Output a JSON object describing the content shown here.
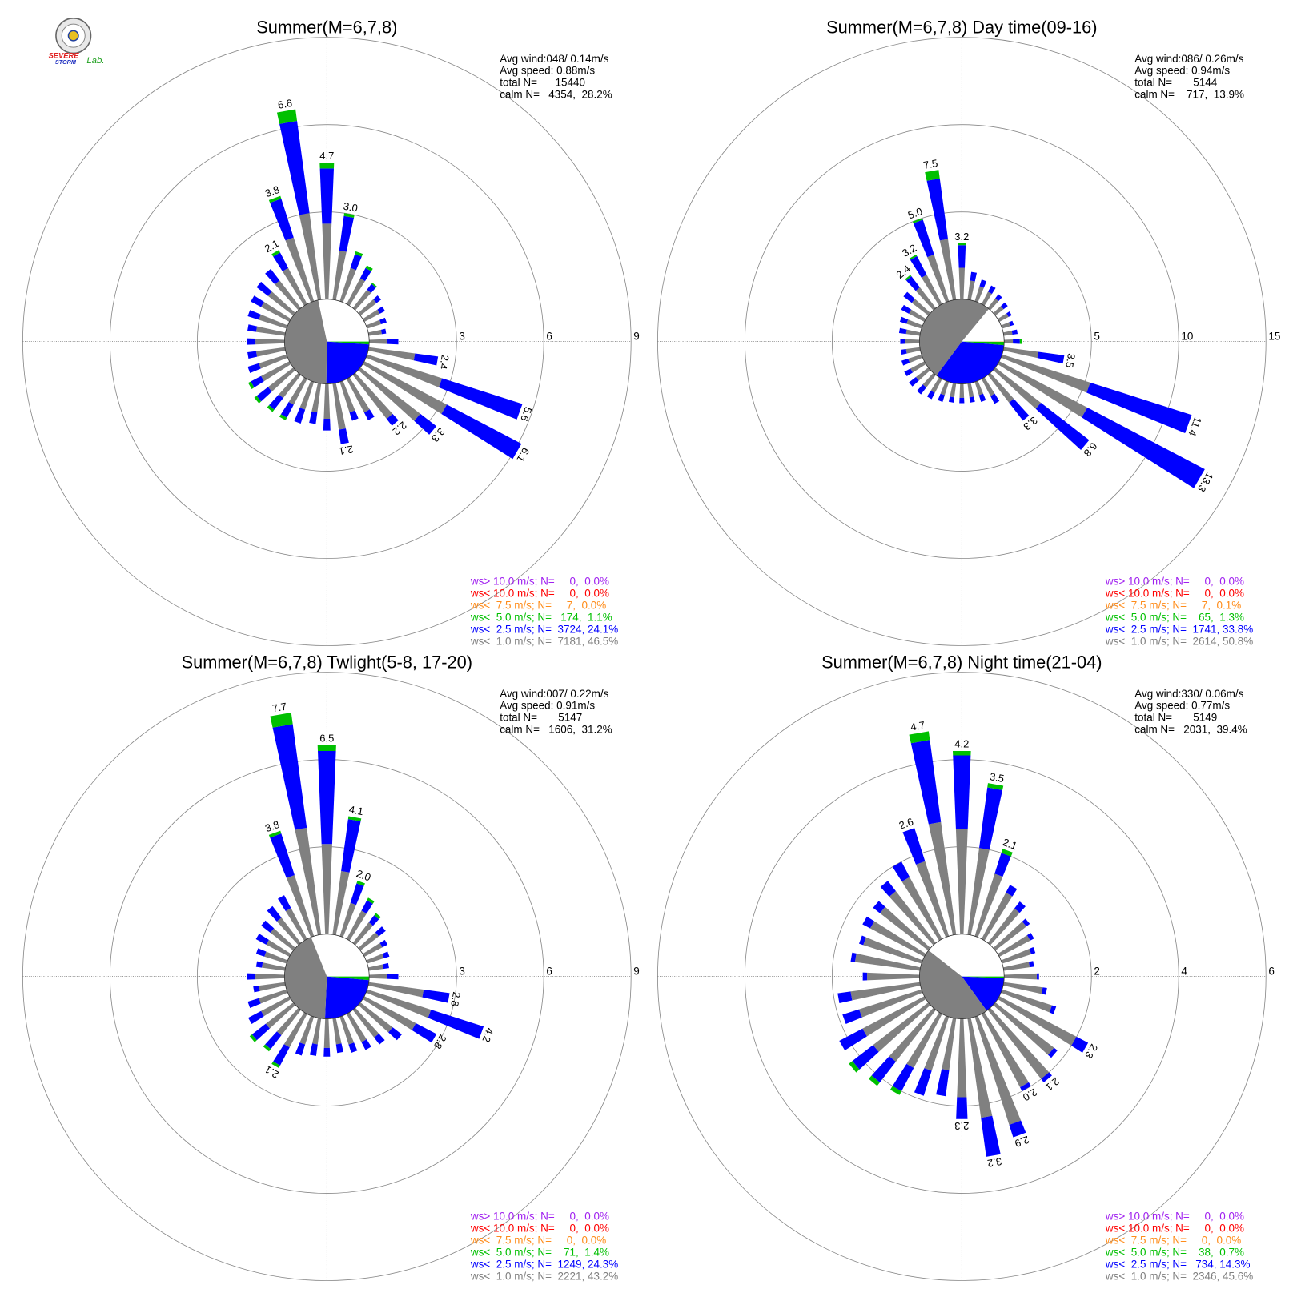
{
  "logo": {
    "line1": "SEVERE",
    "line2": "STORM",
    "line3": "Lab."
  },
  "chart_data": [
    {
      "type": "windrose",
      "title": "Summer(M=6,7,8)",
      "stats": [
        "Avg wind:048/ 0.14m/s",
        "Avg speed: 0.88m/s",
        "total N=      15440",
        "calm N=   4354,  28.2%"
      ],
      "rlim": [
        0,
        9
      ],
      "rticks": [
        3,
        6,
        9
      ],
      "directions": [
        0,
        10,
        20,
        30,
        40,
        50,
        60,
        70,
        80,
        90,
        100,
        110,
        120,
        130,
        140,
        150,
        160,
        170,
        180,
        190,
        200,
        210,
        220,
        230,
        240,
        250,
        260,
        270,
        280,
        290,
        300,
        310,
        320,
        330,
        340,
        350
      ],
      "series": [
        {
          "color": "#808080",
          "values": [
            2.6,
            1.7,
            1.2,
            1.0,
            0.8,
            0.7,
            0.6,
            0.5,
            0.45,
            0.6,
            1.6,
            2.7,
            3.2,
            2.6,
            1.9,
            1.3,
            1.1,
            1.6,
            1.2,
            1.0,
            1.0,
            1.0,
            1.0,
            1.1,
            1.1,
            1.0,
            1.0,
            1.0,
            1.0,
            1.0,
            1.1,
            1.1,
            1.2,
            1.4,
            2.3,
            3.0
          ]
        },
        {
          "color": "#0000ff",
          "values": [
            1.9,
            1.2,
            0.5,
            0.4,
            0.25,
            0.2,
            0.2,
            0.2,
            0.15,
            0.4,
            0.8,
            2.9,
            2.9,
            0.7,
            0.3,
            0.3,
            0.3,
            0.5,
            0.4,
            0.4,
            0.5,
            0.5,
            0.5,
            0.5,
            0.4,
            0.4,
            0.3,
            0.3,
            0.3,
            0.4,
            0.4,
            0.5,
            0.5,
            0.6,
            1.4,
            3.2
          ]
        },
        {
          "color": "#00c000",
          "values": [
            0.2,
            0.1,
            0.1,
            0.1,
            0.05,
            0,
            0,
            0,
            0,
            0,
            0,
            0,
            0,
            0,
            0,
            0,
            0,
            0,
            0,
            0,
            0,
            0.1,
            0.1,
            0.1,
            0.1,
            0,
            0,
            0,
            0,
            0,
            0,
            0,
            0,
            0.1,
            0.1,
            0.4
          ]
        }
      ],
      "total_labels": [
        "4.7",
        "3.0",
        null,
        null,
        null,
        null,
        null,
        null,
        null,
        null,
        "2.4",
        "5.6",
        "6.1",
        "3.3",
        "2.2",
        null,
        null,
        "2.1",
        null,
        null,
        null,
        null,
        null,
        null,
        null,
        null,
        null,
        null,
        null,
        null,
        null,
        null,
        null,
        "2.1",
        "3.8",
        "6.6"
      ],
      "legend": [
        {
          "text": "ws> 10.0 m/s; N=     0,  0.0%",
          "color": "#a020f0",
          "percent": 0
        },
        {
          "text": "ws< 10.0 m/s; N=     0,  0.0%",
          "color": "#ff0000",
          "percent": 0
        },
        {
          "text": "ws<  7.5 m/s; N=     7,  0.0%",
          "color": "#ff8c1a",
          "percent": 0
        },
        {
          "text": "ws<  5.0 m/s; N=   174,  1.1%",
          "color": "#00c000",
          "percent": 1.1
        },
        {
          "text": "ws<  2.5 m/s; N=  3724, 24.1%",
          "color": "#0000ff",
          "percent": 24.1
        },
        {
          "text": "ws<  1.0 m/s; N=  7181, 46.5%",
          "color": "#808080",
          "percent": 46.5
        }
      ]
    },
    {
      "type": "windrose",
      "title": "Summer(M=6,7,8) Day time(09-16)",
      "stats": [
        "Avg wind:086/ 0.26m/s",
        "Avg speed: 0.94m/s",
        "total N=       5144",
        "calm N=    717,  13.9%"
      ],
      "rlim": [
        0,
        15
      ],
      "rticks": [
        5,
        10,
        15
      ],
      "directions": [
        0,
        10,
        20,
        30,
        40,
        50,
        60,
        70,
        80,
        90,
        100,
        110,
        120,
        130,
        140,
        150,
        160,
        170,
        180,
        190,
        200,
        210,
        220,
        230,
        240,
        250,
        260,
        270,
        280,
        290,
        300,
        310,
        320,
        330,
        340,
        350
      ],
      "series": [
        {
          "color": "#808080",
          "values": [
            1.8,
            1.1,
            0.9,
            0.8,
            0.7,
            0.6,
            0.6,
            0.5,
            0.5,
            0.5,
            2.0,
            5.3,
            5.7,
            3.3,
            2.0,
            1.1,
            0.8,
            0.8,
            0.8,
            0.8,
            0.8,
            0.9,
            0.9,
            0.9,
            0.9,
            0.8,
            0.8,
            0.8,
            0.8,
            0.9,
            1.0,
            1.2,
            1.5,
            1.9,
            2.8,
            3.5
          ]
        },
        {
          "color": "#0000ff",
          "values": [
            1.3,
            0.5,
            0.4,
            0.4,
            0.3,
            0.3,
            0.2,
            0.2,
            0.3,
            0.4,
            1.5,
            6.1,
            7.6,
            3.5,
            1.3,
            0.5,
            0.4,
            0.3,
            0.3,
            0.3,
            0.4,
            0.4,
            0.5,
            0.5,
            0.4,
            0.4,
            0.3,
            0.3,
            0.4,
            0.4,
            0.5,
            0.6,
            0.8,
            1.2,
            2.1,
            3.5
          ]
        },
        {
          "color": "#00c000",
          "values": [
            0.1,
            0,
            0,
            0,
            0,
            0,
            0,
            0,
            0,
            0.1,
            0,
            0,
            0,
            0,
            0,
            0,
            0,
            0,
            0,
            0,
            0,
            0,
            0,
            0,
            0,
            0,
            0,
            0,
            0,
            0,
            0,
            0,
            0.1,
            0.1,
            0.1,
            0.5
          ]
        }
      ],
      "total_labels": [
        "3.2",
        null,
        null,
        null,
        null,
        null,
        null,
        null,
        null,
        null,
        "3.5",
        "11.4",
        "13.3",
        "6.8",
        "3.3",
        null,
        null,
        null,
        null,
        null,
        null,
        null,
        null,
        null,
        null,
        null,
        null,
        null,
        null,
        null,
        null,
        null,
        "2.4",
        "3.2",
        "5.0",
        "7.5"
      ],
      "legend": [
        {
          "text": "ws> 10.0 m/s; N=     0,  0.0%",
          "color": "#a020f0",
          "percent": 0
        },
        {
          "text": "ws< 10.0 m/s; N=     0,  0.0%",
          "color": "#ff0000",
          "percent": 0
        },
        {
          "text": "ws<  7.5 m/s; N=     7,  0.1%",
          "color": "#ff8c1a",
          "percent": 0.1
        },
        {
          "text": "ws<  5.0 m/s; N=    65,  1.3%",
          "color": "#00c000",
          "percent": 1.3
        },
        {
          "text": "ws<  2.5 m/s; N=  1741, 33.8%",
          "color": "#0000ff",
          "percent": 33.8
        },
        {
          "text": "ws<  1.0 m/s; N=  2614, 50.8%",
          "color": "#808080",
          "percent": 50.8
        }
      ]
    },
    {
      "type": "windrose",
      "title": "Summer(M=6,7,8) Twlight(5-8, 17-20)",
      "stats": [
        "Avg wind:007/ 0.22m/s",
        "Avg speed: 0.91m/s",
        "total N=       5147",
        "calm N=   1606,  31.2%"
      ],
      "rlim": [
        0,
        9
      ],
      "rticks": [
        3,
        6,
        9
      ],
      "directions": [
        0,
        10,
        20,
        30,
        40,
        50,
        60,
        70,
        80,
        90,
        100,
        110,
        120,
        130,
        140,
        150,
        160,
        170,
        180,
        190,
        200,
        210,
        220,
        230,
        240,
        250,
        260,
        270,
        280,
        290,
        300,
        310,
        320,
        330,
        340,
        350
      ],
      "series": [
        {
          "color": "#808080",
          "values": [
            3.1,
            2.2,
            1.2,
            1.1,
            0.9,
            0.8,
            0.7,
            0.6,
            0.5,
            0.6,
            1.9,
            2.3,
            2.0,
            1.4,
            1.2,
            1.1,
            1.0,
            0.9,
            1.0,
            0.9,
            1.0,
            1.3,
            1.1,
            1.2,
            1.1,
            1.0,
            0.9,
            1.0,
            0.8,
            0.8,
            0.9,
            1.0,
            1.1,
            1.2,
            2.2,
            3.7
          ]
        },
        {
          "color": "#0000ff",
          "values": [
            3.2,
            1.8,
            0.7,
            0.4,
            0.3,
            0.3,
            0.2,
            0.2,
            0.2,
            0.4,
            0.9,
            1.9,
            0.8,
            0.4,
            0.3,
            0.3,
            0.3,
            0.3,
            0.3,
            0.4,
            0.4,
            0.7,
            0.6,
            0.6,
            0.5,
            0.4,
            0.2,
            0.3,
            0.2,
            0.3,
            0.4,
            0.4,
            0.5,
            0.5,
            1.5,
            3.6
          ]
        },
        {
          "color": "#00c000",
          "values": [
            0.2,
            0.1,
            0.1,
            0.1,
            0.1,
            0,
            0,
            0,
            0,
            0,
            0,
            0,
            0,
            0,
            0,
            0,
            0,
            0,
            0,
            0,
            0,
            0.1,
            0.1,
            0.1,
            0,
            0,
            0,
            0,
            0,
            0,
            0,
            0,
            0,
            0,
            0.1,
            0.4
          ]
        }
      ],
      "total_labels": [
        "6.5",
        "4.1",
        "2.0",
        null,
        null,
        null,
        null,
        null,
        null,
        null,
        "2.8",
        "4.2",
        "2.8",
        null,
        null,
        null,
        null,
        null,
        null,
        null,
        null,
        "2.1",
        null,
        null,
        null,
        null,
        null,
        null,
        null,
        null,
        null,
        null,
        null,
        null,
        "3.8",
        "7.7"
      ],
      "legend": [
        {
          "text": "ws> 10.0 m/s; N=     0,  0.0%",
          "color": "#a020f0",
          "percent": 0
        },
        {
          "text": "ws< 10.0 m/s; N=     0,  0.0%",
          "color": "#ff0000",
          "percent": 0
        },
        {
          "text": "ws<  7.5 m/s; N=     0,  0.0%",
          "color": "#ff8c1a",
          "percent": 0
        },
        {
          "text": "ws<  5.0 m/s; N=    71,  1.4%",
          "color": "#00c000",
          "percent": 1.4
        },
        {
          "text": "ws<  2.5 m/s; N=  1249, 24.3%",
          "color": "#0000ff",
          "percent": 24.3
        },
        {
          "text": "ws<  1.0 m/s; N=  2221, 43.2%",
          "color": "#808080",
          "percent": 43.2
        }
      ]
    },
    {
      "type": "windrose",
      "title": "Summer(M=6,7,8) Night time(21-04)",
      "stats": [
        "Avg wind:330/ 0.06m/s",
        "Avg speed: 0.77m/s",
        "total N=       5149",
        "calm N=   2031,  39.4%"
      ],
      "rlim": [
        0,
        6
      ],
      "rticks": [
        2,
        4,
        6
      ],
      "directions": [
        0,
        10,
        20,
        30,
        40,
        50,
        60,
        70,
        80,
        90,
        100,
        110,
        120,
        130,
        140,
        150,
        160,
        170,
        180,
        190,
        200,
        210,
        220,
        230,
        240,
        250,
        260,
        270,
        280,
        290,
        300,
        310,
        320,
        330,
        340,
        350
      ],
      "series": [
        {
          "color": "#808080",
          "values": [
            2.4,
            2.0,
            1.5,
            1.2,
            1.0,
            0.9,
            0.8,
            0.7,
            0.6,
            0.75,
            0.9,
            1.2,
            2.0,
            1.7,
            2.0,
            1.9,
            2.6,
            2.3,
            1.8,
            1.2,
            1.3,
            1.4,
            1.5,
            1.6,
            1.6,
            1.5,
            1.6,
            1.2,
            1.5,
            1.4,
            1.4,
            1.4,
            1.5,
            1.6,
            1.8,
            2.6
          ]
        },
        {
          "color": "#0000ff",
          "values": [
            1.7,
            1.4,
            0.5,
            0.2,
            0.2,
            0.1,
            0.1,
            0.1,
            0.1,
            0.05,
            0.1,
            0.1,
            0.3,
            0.1,
            0.1,
            0.1,
            0.3,
            0.9,
            0.5,
            0.6,
            0.6,
            0.6,
            0.6,
            0.6,
            0.6,
            0.4,
            0.3,
            0.1,
            0.1,
            0.1,
            0.2,
            0.2,
            0.3,
            0.4,
            0.8,
            1.9
          ]
        },
        {
          "color": "#00c000",
          "values": [
            0.1,
            0.1,
            0.1,
            0,
            0,
            0,
            0,
            0,
            0,
            0,
            0,
            0,
            0,
            0,
            0,
            0,
            0,
            0,
            0,
            0,
            0,
            0.1,
            0.1,
            0.1,
            0,
            0,
            0,
            0,
            0,
            0,
            0,
            0,
            0,
            0,
            0,
            0.2
          ]
        }
      ],
      "total_labels": [
        "4.2",
        "3.5",
        "2.1",
        null,
        null,
        null,
        null,
        null,
        null,
        null,
        null,
        null,
        "2.3",
        null,
        "2.1",
        "2.0",
        "2.9",
        "3.2",
        "2.3",
        null,
        null,
        null,
        null,
        null,
        null,
        null,
        null,
        null,
        null,
        null,
        null,
        null,
        null,
        null,
        "2.6",
        "4.7"
      ],
      "legend": [
        {
          "text": "ws> 10.0 m/s; N=     0,  0.0%",
          "color": "#a020f0",
          "percent": 0
        },
        {
          "text": "ws< 10.0 m/s; N=     0,  0.0%",
          "color": "#ff0000",
          "percent": 0
        },
        {
          "text": "ws<  7.5 m/s; N=     0,  0.0%",
          "color": "#ff8c1a",
          "percent": 0
        },
        {
          "text": "ws<  5.0 m/s; N=    38,  0.7%",
          "color": "#00c000",
          "percent": 0.7
        },
        {
          "text": "ws<  2.5 m/s; N=   734, 14.3%",
          "color": "#0000ff",
          "percent": 14.3
        },
        {
          "text": "ws<  1.0 m/s; N=  2346, 45.6%",
          "color": "#808080",
          "percent": 45.6
        }
      ]
    }
  ]
}
